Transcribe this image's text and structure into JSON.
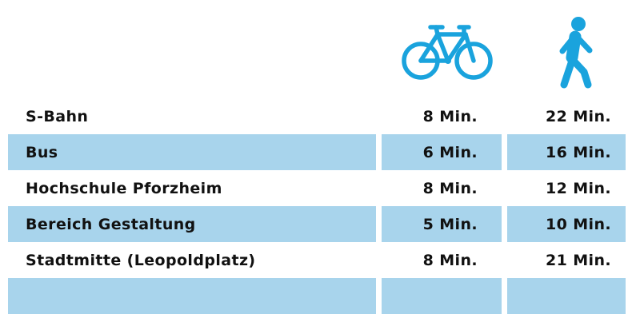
{
  "icons": {
    "bike": "bicycle-icon",
    "walk": "pedestrian-icon",
    "color": "#1aa3dd"
  },
  "colors": {
    "shaded_row": "#a8d4ec",
    "text": "#111111"
  },
  "rows": [
    {
      "name": "S-Bahn",
      "bike": "8 Min.",
      "walk": "22 Min."
    },
    {
      "name": "Bus",
      "bike": "6 Min.",
      "walk": "16 Min."
    },
    {
      "name": "Hochschule Pforzheim",
      "bike": "8 Min.",
      "walk": "12 Min."
    },
    {
      "name": "Bereich Gestaltung",
      "bike": "5 Min.",
      "walk": "10 Min."
    },
    {
      "name": "Stadtmitte (Leopoldplatz)",
      "bike": "8 Min.",
      "walk": "21 Min."
    },
    {
      "name": "",
      "bike": "",
      "walk": ""
    }
  ]
}
